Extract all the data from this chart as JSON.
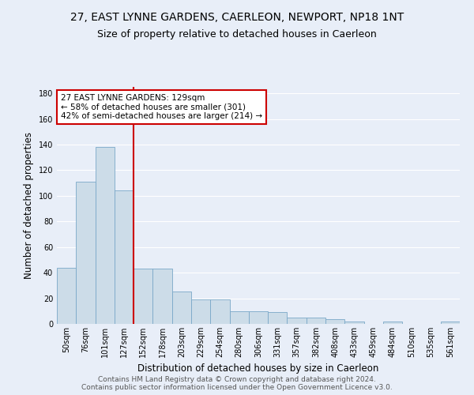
{
  "title": "27, EAST LYNNE GARDENS, CAERLEON, NEWPORT, NP18 1NT",
  "subtitle": "Size of property relative to detached houses in Caerleon",
  "xlabel": "Distribution of detached houses by size in Caerleon",
  "ylabel": "Number of detached properties",
  "categories": [
    "50sqm",
    "76sqm",
    "101sqm",
    "127sqm",
    "152sqm",
    "178sqm",
    "203sqm",
    "229sqm",
    "254sqm",
    "280sqm",
    "306sqm",
    "331sqm",
    "357sqm",
    "382sqm",
    "408sqm",
    "433sqm",
    "459sqm",
    "484sqm",
    "510sqm",
    "535sqm",
    "561sqm"
  ],
  "values": [
    44,
    111,
    138,
    104,
    43,
    43,
    25,
    19,
    19,
    10,
    10,
    9,
    5,
    5,
    4,
    2,
    0,
    2,
    0,
    0,
    2
  ],
  "bar_color": "#ccdce8",
  "bar_edge_color": "#7aa8c8",
  "vline_color": "#cc0000",
  "vline_x_index": 3,
  "annotation_text": "27 EAST LYNNE GARDENS: 129sqm\n← 58% of detached houses are smaller (301)\n42% of semi-detached houses are larger (214) →",
  "annotation_box_facecolor": "white",
  "annotation_box_edgecolor": "#cc0000",
  "ylim": [
    0,
    185
  ],
  "yticks": [
    0,
    20,
    40,
    60,
    80,
    100,
    120,
    140,
    160,
    180
  ],
  "footer_text": "Contains HM Land Registry data © Crown copyright and database right 2024.\nContains public sector information licensed under the Open Government Licence v3.0.",
  "bg_color": "#e8eef8",
  "grid_color": "white",
  "title_fontsize": 10,
  "subtitle_fontsize": 9,
  "axis_label_fontsize": 8.5,
  "tick_fontsize": 7,
  "annotation_fontsize": 7.5,
  "footer_fontsize": 6.5
}
